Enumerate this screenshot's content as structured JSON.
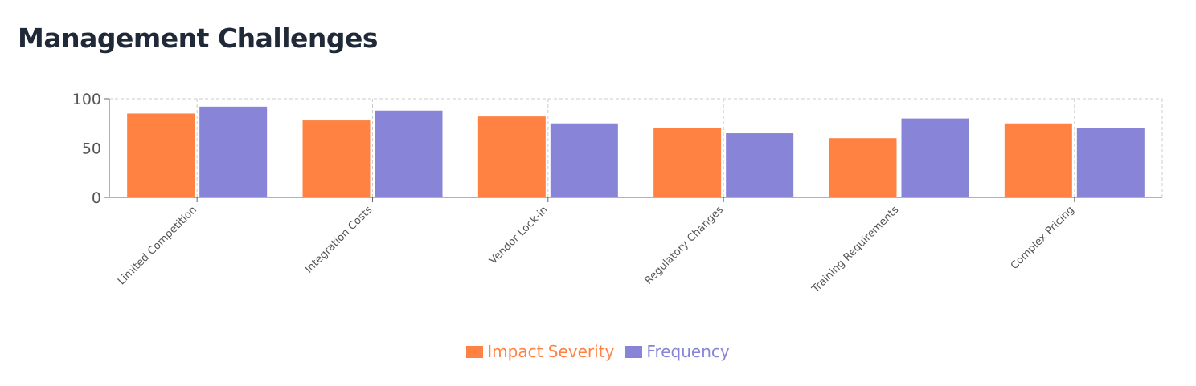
{
  "title": "Management Challenges",
  "colors": {
    "impact": "#FF8243",
    "frequency": "#8884D8",
    "grid": "#cccccc",
    "axis": "#666666"
  },
  "chart_data": {
    "type": "bar",
    "title": "Management Challenges",
    "xlabel": "",
    "ylabel": "",
    "ylim": [
      0,
      100
    ],
    "yticks": [
      0,
      50,
      100
    ],
    "grid": true,
    "legend_position": "bottom-center",
    "categories": [
      "Limited Competition",
      "Integration Costs",
      "Vendor Lock-in",
      "Regulatory Changes",
      "Training Requirements",
      "Complex Pricing"
    ],
    "series": [
      {
        "name": "Impact Severity",
        "color": "#FF8243",
        "values": [
          85,
          78,
          82,
          70,
          60,
          75
        ]
      },
      {
        "name": "Frequency",
        "color": "#8884D8",
        "values": [
          92,
          88,
          75,
          65,
          80,
          70
        ]
      }
    ]
  }
}
